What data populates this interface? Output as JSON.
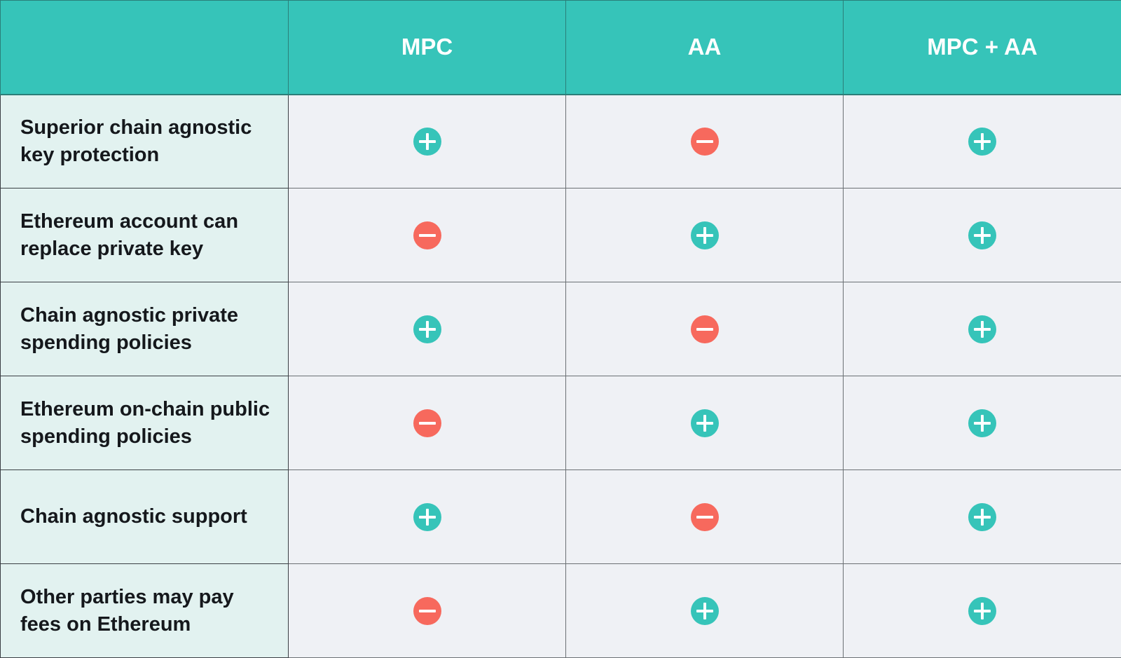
{
  "columns": [
    "",
    "MPC",
    "AA",
    "MPC + AA"
  ],
  "rows": [
    {
      "feature": "Superior chain agnostic key protection",
      "marks": [
        "plus",
        "minus",
        "plus"
      ]
    },
    {
      "feature": "Ethereum account can replace private key",
      "marks": [
        "minus",
        "plus",
        "plus"
      ]
    },
    {
      "feature": "Chain agnostic  private spending policies",
      "marks": [
        "plus",
        "minus",
        "plus"
      ]
    },
    {
      "feature": "Ethereum on-chain public spending policies",
      "marks": [
        "minus",
        "plus",
        "plus"
      ]
    },
    {
      "feature": "Chain agnostic support",
      "marks": [
        "plus",
        "minus",
        "plus"
      ]
    },
    {
      "feature": "Other parties may pay fees on Ethereum",
      "marks": [
        "minus",
        "plus",
        "plus"
      ]
    }
  ],
  "icons": {
    "plus": "plus-circle-icon",
    "minus": "minus-circle-icon"
  },
  "colors": {
    "header_bg": "#36c4b9",
    "plus": "#36c4b9",
    "minus": "#f7695d",
    "feature_bg": "#e2f2f0",
    "cell_bg": "#eff1f5"
  }
}
